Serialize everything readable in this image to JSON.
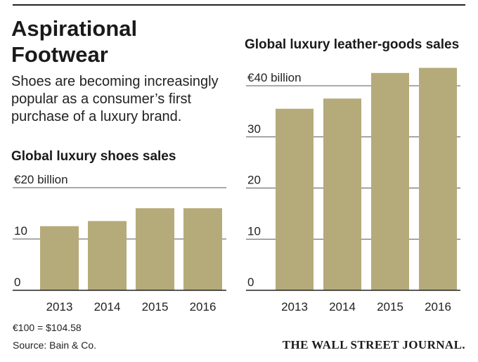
{
  "headline": "Aspirational Footwear",
  "dek": "Shoes are becoming increasingly popular as a consumer’s first purchase of a luxury brand.",
  "footnote": "€100 = $104.58",
  "source": "Source: Bain & Co.",
  "publisher": "THE WALL STREET JOURNAL.",
  "colors": {
    "bar": "#b5ab7a",
    "grid": "#555555",
    "baseline": "#222222"
  },
  "chart_data": [
    {
      "type": "bar",
      "title": "Global luxury shoes sales",
      "unit_label": "€20 billion",
      "categories": [
        "2013",
        "2014",
        "2015",
        "2016"
      ],
      "values": [
        12.5,
        13.5,
        16,
        16
      ],
      "ylim": [
        0,
        20
      ],
      "yticks": [
        0,
        10,
        20
      ],
      "ytick_labels": [
        "0",
        "10",
        "€20 billion"
      ],
      "grid": true
    },
    {
      "type": "bar",
      "title": "Global luxury leather-goods sales",
      "unit_label": "€40 billion",
      "categories": [
        "2013",
        "2014",
        "2015",
        "2016"
      ],
      "values": [
        35.5,
        37.5,
        42.5,
        43.5
      ],
      "ylim": [
        0,
        40
      ],
      "yticks": [
        0,
        10,
        20,
        30,
        40
      ],
      "ytick_labels": [
        "0",
        "10",
        "20",
        "30",
        "€40 billion"
      ],
      "grid": true
    }
  ]
}
